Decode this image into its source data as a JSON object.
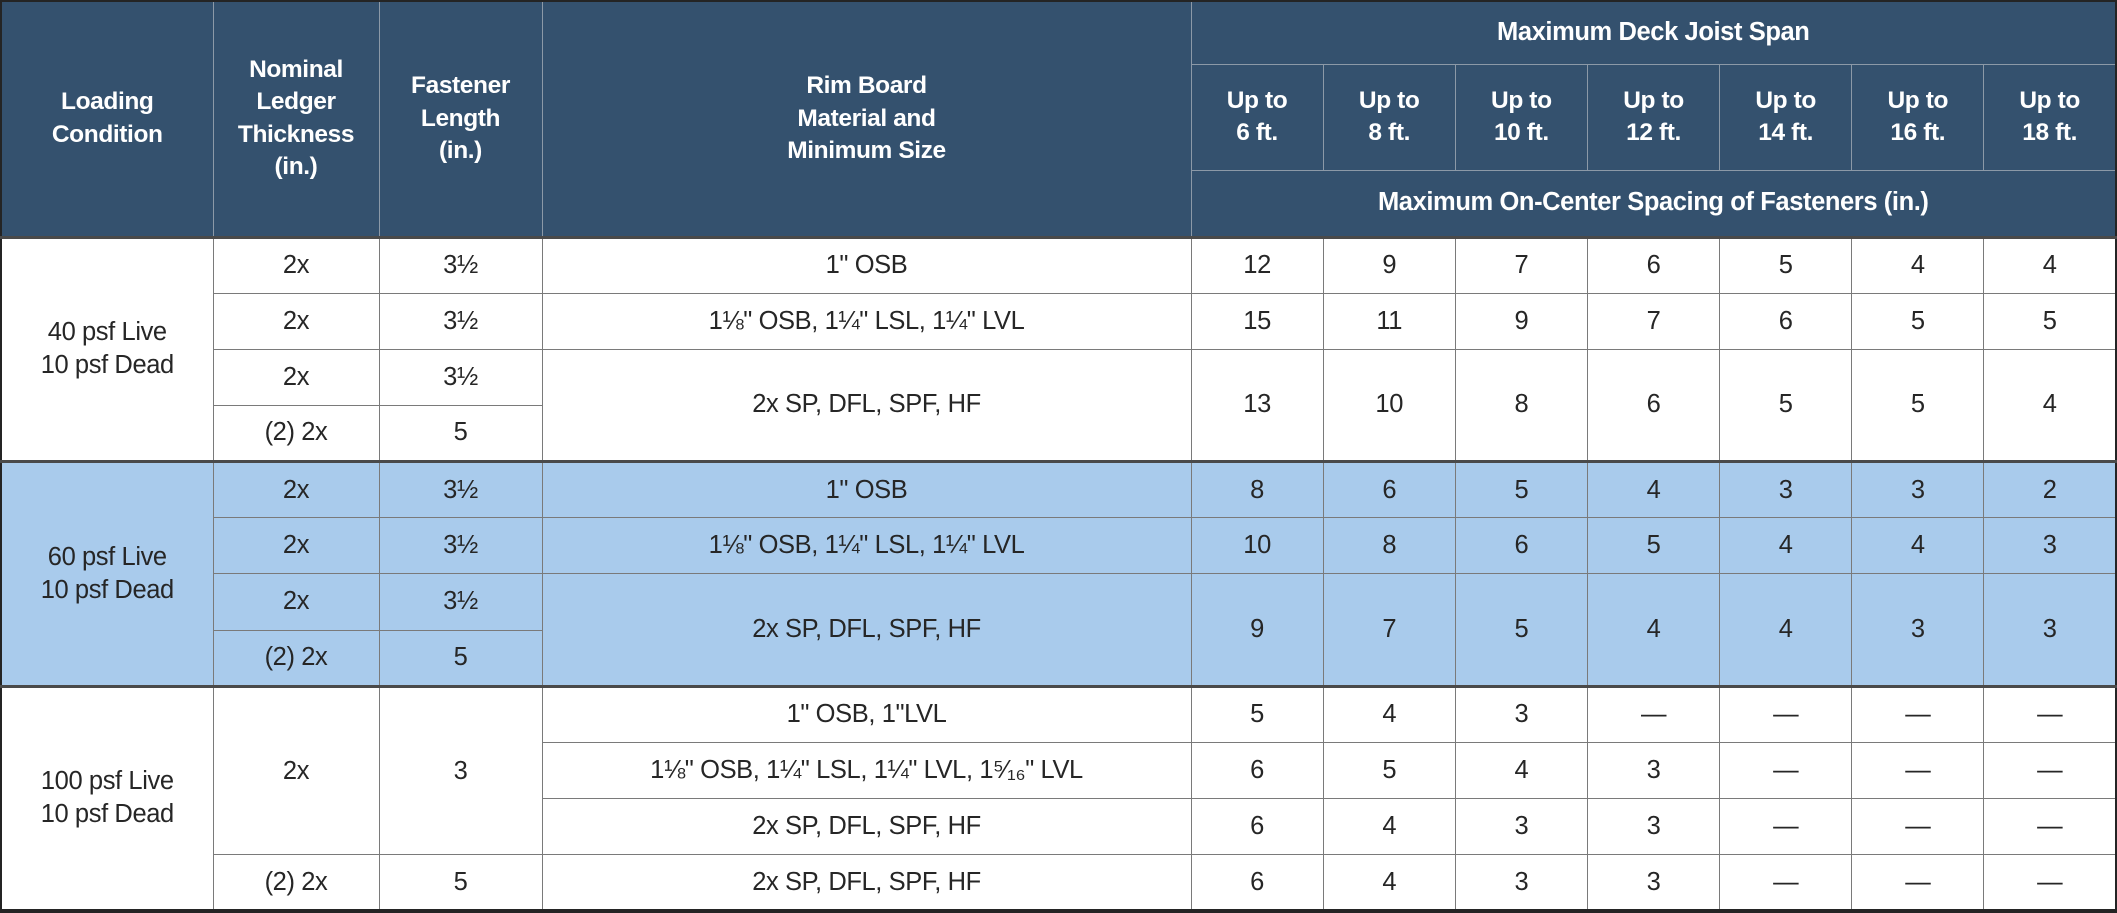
{
  "colors": {
    "header_bg": "#34516E",
    "header_line": "#8C99A7",
    "header_text": "#FFFFFF",
    "highlight_bg": "#A9CBEC",
    "body_bg": "#FFFFFF",
    "body_text": "#262626",
    "border": "#7A7A7A",
    "group_border": "#4A4A4A"
  },
  "table": {
    "header": {
      "loading": "Loading\nCondition",
      "ledger": "Nominal\nLedger\nThickness\n(in.)",
      "fastener": "Fastener\nLength\n(in.)",
      "rim": "Rim Board\nMaterial and\nMinimum Size",
      "span_title": "Maximum Deck Joist Span",
      "span_cols": [
        "Up to\n6 ft.",
        "Up to\n8 ft.",
        "Up to\n10 ft.",
        "Up to\n12 ft.",
        "Up to\n14 ft.",
        "Up to\n16 ft.",
        "Up to\n18 ft."
      ],
      "spacing_title": "Maximum On-Center Spacing of Fasteners (in.)"
    },
    "groups": [
      {
        "loading": "40 psf Live\n10 psf Dead",
        "highlight": false,
        "rows": [
          {
            "ledger": "2x",
            "length": "3½",
            "rim": "1\" OSB",
            "values": [
              "12",
              "9",
              "7",
              "6",
              "5",
              "4",
              "4"
            ]
          },
          {
            "ledger": "2x",
            "length": "3½",
            "rim": "1⅛\" OSB, 1¼\" LSL, 1¼\" LVL",
            "values": [
              "15",
              "11",
              "9",
              "7",
              "6",
              "5",
              "5"
            ]
          },
          {
            "ledger": "2x",
            "length": "3½",
            "rim": "2x SP, DFL, SPF, HF",
            "rim_rowspan": 2,
            "values": [
              "13",
              "10",
              "8",
              "6",
              "5",
              "5",
              "4"
            ],
            "values_rowspan": 2
          },
          {
            "ledger": "(2) 2x",
            "length": "5"
          }
        ]
      },
      {
        "loading": "60 psf Live\n10 psf Dead",
        "highlight": true,
        "rows": [
          {
            "ledger": "2x",
            "length": "3½",
            "rim": "1\" OSB",
            "values": [
              "8",
              "6",
              "5",
              "4",
              "3",
              "3",
              "2"
            ]
          },
          {
            "ledger": "2x",
            "length": "3½",
            "rim": "1⅛\" OSB, 1¼\" LSL, 1¼\" LVL",
            "values": [
              "10",
              "8",
              "6",
              "5",
              "4",
              "4",
              "3"
            ]
          },
          {
            "ledger": "2x",
            "length": "3½",
            "rim": "2x SP, DFL, SPF, HF",
            "rim_rowspan": 2,
            "values": [
              "9",
              "7",
              "5",
              "4",
              "4",
              "3",
              "3"
            ],
            "values_rowspan": 2
          },
          {
            "ledger": "(2) 2x",
            "length": "5"
          }
        ]
      },
      {
        "loading": "100 psf Live\n10 psf Dead",
        "highlight": false,
        "rows": [
          {
            "ledger": "2x",
            "ledger_rowspan": 3,
            "length": "3",
            "length_rowspan": 3,
            "rim": "1\" OSB, 1\"LVL",
            "values": [
              "5",
              "4",
              "3",
              "—",
              "—",
              "—",
              "—"
            ]
          },
          {
            "rim": "1⅛\" OSB, 1¼\" LSL, 1¼\" LVL, 1⁵⁄₁₆\" LVL",
            "values": [
              "6",
              "5",
              "4",
              "3",
              "—",
              "—",
              "—"
            ]
          },
          {
            "rim": "2x SP, DFL, SPF, HF",
            "values": [
              "6",
              "4",
              "3",
              "3",
              "—",
              "—",
              "—"
            ]
          },
          {
            "ledger": "(2) 2x",
            "length": "5",
            "rim": "2x SP, DFL, SPF, HF",
            "values": [
              "6",
              "4",
              "3",
              "3",
              "—",
              "—",
              "—"
            ]
          }
        ]
      }
    ]
  }
}
